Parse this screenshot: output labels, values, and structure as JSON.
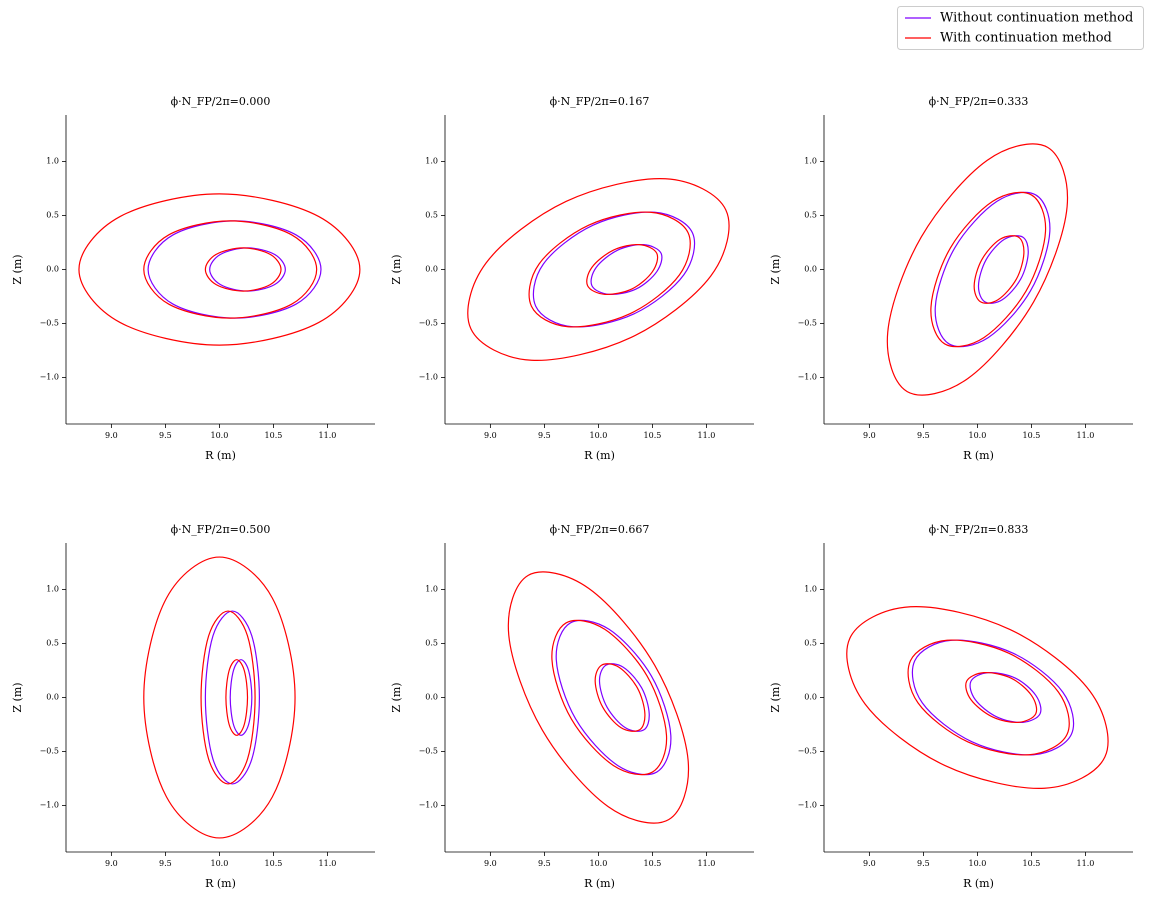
{
  "chart_data": [
    {
      "type": "line",
      "title": "ϕ·N_FP/2π=0.000",
      "xlabel": "R (m)",
      "ylabel": "Z (m)",
      "xlim": [
        8.58,
        11.44
      ],
      "ylim": [
        -1.43,
        1.43
      ],
      "xticks": [
        {
          "value": 9,
          "label": "9.0"
        },
        {
          "value": 9.5,
          "label": "9.5"
        },
        {
          "value": 10,
          "label": "10.0"
        },
        {
          "value": 10.5,
          "label": "10.5"
        },
        {
          "value": 11,
          "label": "11.0"
        }
      ],
      "yticks": [
        {
          "value": -1,
          "label": "−1.0"
        },
        {
          "value": -0.5,
          "label": "−0.5"
        },
        {
          "value": 0,
          "label": "0.0"
        },
        {
          "value": 0.5,
          "label": "0.5"
        },
        {
          "value": 1,
          "label": "1.0"
        }
      ],
      "series": [
        {
          "name": "Without continuation method",
          "color": "#7f00ff",
          "x": [
            10.94,
            10.71,
            10.14,
            9.57,
            9.34,
            9.57,
            10.14,
            10.71,
            10.94,
            null,
            10.61,
            10.51,
            10.26,
            10.01,
            9.91,
            10.01,
            10.26,
            10.51,
            10.61
          ],
          "y": [
            0,
            0.32,
            0.45,
            0.32,
            0,
            -0.32,
            -0.45,
            -0.32,
            0,
            null,
            0,
            0.14,
            0.2,
            0.14,
            0,
            -0.14,
            -0.2,
            -0.14,
            0
          ]
        },
        {
          "name": "With continuation method",
          "color": "#ff0000",
          "x": [
            11.3,
            10.92,
            10.0,
            9.08,
            8.7,
            9.08,
            10.0,
            10.92,
            11.3,
            null,
            10.9,
            10.67,
            10.1,
            9.53,
            9.3,
            9.53,
            10.1,
            10.67,
            10.9,
            null,
            10.57,
            10.47,
            10.22,
            9.97,
            9.87,
            9.97,
            10.22,
            10.47,
            10.57
          ],
          "y": [
            0,
            0.49,
            0.7,
            0.49,
            0,
            -0.49,
            -0.7,
            -0.49,
            0,
            null,
            0,
            0.32,
            0.45,
            0.32,
            0,
            -0.32,
            -0.45,
            -0.32,
            0,
            null,
            0,
            0.14,
            0.2,
            0.14,
            0,
            -0.14,
            -0.2,
            -0.14,
            0
          ]
        }
      ]
    },
    {
      "type": "line",
      "title": "ϕ·N_FP/2π=0.167",
      "xlabel": "R (m)",
      "ylabel": "Z (m)",
      "xlim": [
        8.58,
        11.44
      ],
      "ylim": [
        -1.43,
        1.43
      ],
      "xticks": [
        {
          "value": 9,
          "label": "9.0"
        },
        {
          "value": 9.5,
          "label": "9.5"
        },
        {
          "value": 10,
          "label": "10.0"
        },
        {
          "value": 10.5,
          "label": "10.5"
        },
        {
          "value": 11,
          "label": "11.0"
        }
      ],
      "yticks": [
        {
          "value": -1,
          "label": "−1.0"
        },
        {
          "value": -0.5,
          "label": "−0.5"
        },
        {
          "value": 0,
          "label": "0.0"
        },
        {
          "value": 0.5,
          "label": "0.5"
        },
        {
          "value": 1,
          "label": "1.0"
        }
      ],
      "series": [
        {
          "name": "Without continuation method",
          "color": "#7f00ff",
          "x": [
            10.87,
            10.52,
            9.95,
            9.49,
            9.42,
            9.76,
            10.33,
            10.79,
            10.87,
            null,
            10.58,
            10.42,
            10.18,
            9.98,
            9.94,
            10.1,
            10.35,
            10.54,
            10.58
          ],
          "y": [
            0.34,
            0.53,
            0.41,
            0.05,
            -0.34,
            -0.53,
            -0.41,
            -0.05,
            0.34,
            null,
            0.15,
            0.23,
            0.18,
            0.02,
            -0.15,
            -0.23,
            -0.18,
            -0.02,
            0.15
          ]
        },
        {
          "name": "With continuation method",
          "color": "#ff0000",
          "x": [
            11.18,
            10.62,
            9.7,
            8.96,
            8.82,
            9.38,
            10.3,
            11.04,
            11.18,
            null,
            10.83,
            10.48,
            9.91,
            9.45,
            9.38,
            9.72,
            10.29,
            10.75,
            10.83,
            null,
            10.54,
            10.38,
            10.14,
            9.94,
            9.9,
            10.06,
            10.31,
            10.5,
            10.54
          ],
          "y": [
            0.55,
            0.84,
            0.63,
            0.06,
            -0.55,
            -0.84,
            -0.63,
            -0.06,
            0.55,
            null,
            0.34,
            0.53,
            0.41,
            0.05,
            -0.34,
            -0.53,
            -0.41,
            -0.05,
            0.34,
            null,
            0.15,
            0.23,
            0.18,
            0.02,
            -0.15,
            -0.23,
            -0.18,
            -0.02,
            0.15
          ]
        }
      ]
    },
    {
      "type": "line",
      "title": "ϕ·N_FP/2π=0.333",
      "xlabel": "R (m)",
      "ylabel": "Z (m)",
      "xlim": [
        8.58,
        11.44
      ],
      "ylim": [
        -1.43,
        1.43
      ],
      "xticks": [
        {
          "value": 9,
          "label": "9.0"
        },
        {
          "value": 9.5,
          "label": "9.5"
        },
        {
          "value": 10,
          "label": "10.0"
        },
        {
          "value": 10.5,
          "label": "10.5"
        },
        {
          "value": 11,
          "label": "11.0"
        }
      ],
      "yticks": [
        {
          "value": -1,
          "label": "−1.0"
        },
        {
          "value": -0.5,
          "label": "−0.5"
        },
        {
          "value": 0,
          "label": "0.0"
        },
        {
          "value": 0.5,
          "label": "0.5"
        },
        {
          "value": 1,
          "label": "1.0"
        }
      ],
      "series": [
        {
          "name": "Without continuation method",
          "color": "#7f00ff",
          "x": [
            10.54,
            10.18,
            9.79,
            9.61,
            9.74,
            10.1,
            10.49,
            10.67,
            10.54,
            null,
            10.42,
            10.25,
            10.08,
            10.01,
            10.07,
            10.23,
            10.4,
            10.47,
            10.42
          ],
          "y": [
            0.69,
            0.63,
            0.2,
            -0.35,
            -0.69,
            -0.63,
            -0.2,
            0.35,
            0.69,
            null,
            0.3,
            0.28,
            0.09,
            -0.15,
            -0.3,
            -0.28,
            -0.09,
            0.15,
            0.3
          ]
        },
        {
          "name": "With continuation method",
          "color": "#ff0000",
          "x": [
            10.65,
            10.09,
            9.48,
            9.17,
            9.35,
            9.91,
            10.52,
            10.83,
            10.65,
            null,
            10.5,
            10.14,
            9.75,
            9.57,
            9.7,
            10.06,
            10.45,
            10.63,
            10.5,
            null,
            10.38,
            10.21,
            10.04,
            9.97,
            10.03,
            10.19,
            10.36,
            10.43,
            10.38
          ],
          "y": [
            1.13,
            1.01,
            0.3,
            -0.58,
            -1.13,
            -1.01,
            -0.3,
            0.58,
            1.13,
            null,
            0.69,
            0.63,
            0.2,
            -0.35,
            -0.69,
            -0.63,
            -0.2,
            0.35,
            0.69,
            null,
            0.3,
            0.28,
            0.09,
            -0.15,
            -0.3,
            -0.28,
            -0.09,
            0.15,
            0.3
          ]
        }
      ]
    },
    {
      "type": "line",
      "title": "ϕ·N_FP/2π=0.500",
      "xlabel": "R (m)",
      "ylabel": "Z (m)",
      "xlim": [
        8.58,
        11.44
      ],
      "ylim": [
        -1.43,
        1.43
      ],
      "xticks": [
        {
          "value": 9,
          "label": "9.0"
        },
        {
          "value": 9.5,
          "label": "9.5"
        },
        {
          "value": 10,
          "label": "10.0"
        },
        {
          "value": 10.5,
          "label": "10.5"
        },
        {
          "value": 11,
          "label": "11.0"
        }
      ],
      "yticks": [
        {
          "value": -1,
          "label": "−1.0"
        },
        {
          "value": -0.5,
          "label": "−0.5"
        },
        {
          "value": 0,
          "label": "0.0"
        },
        {
          "value": 0.5,
          "label": "0.5"
        },
        {
          "value": 1,
          "label": "1.0"
        }
      ],
      "series": [
        {
          "name": "Without continuation method",
          "color": "#7f00ff",
          "x": [
            10.37,
            10.3,
            10.12,
            9.94,
            9.87,
            9.94,
            10.12,
            10.3,
            10.37,
            null,
            10.3,
            10.27,
            10.2,
            10.13,
            10.1,
            10.13,
            10.2,
            10.27,
            10.3
          ],
          "y": [
            0,
            0.57,
            0.8,
            0.57,
            0,
            -0.57,
            -0.8,
            -0.57,
            0,
            null,
            0,
            0.25,
            0.35,
            0.25,
            0,
            -0.25,
            -0.35,
            -0.25,
            0
          ]
        },
        {
          "name": "With continuation method",
          "color": "#ff0000",
          "x": [
            10.7,
            10.49,
            10.0,
            9.51,
            9.3,
            9.51,
            10.0,
            10.49,
            10.7,
            null,
            10.33,
            10.26,
            10.08,
            9.9,
            9.83,
            9.9,
            10.08,
            10.26,
            10.33,
            null,
            10.26,
            10.23,
            10.16,
            10.09,
            10.06,
            10.09,
            10.16,
            10.23,
            10.26
          ],
          "y": [
            0,
            0.92,
            1.3,
            0.92,
            0,
            -0.92,
            -1.3,
            -0.92,
            0,
            null,
            0,
            0.57,
            0.8,
            0.57,
            0,
            -0.57,
            -0.8,
            -0.57,
            0,
            null,
            0,
            0.25,
            0.35,
            0.25,
            0,
            -0.25,
            -0.35,
            -0.25,
            0
          ]
        }
      ]
    },
    {
      "type": "line",
      "title": "ϕ·N_FP/2π=0.667",
      "xlabel": "R (m)",
      "ylabel": "Z (m)",
      "xlim": [
        8.58,
        11.44
      ],
      "ylim": [
        -1.43,
        1.43
      ],
      "xticks": [
        {
          "value": 9,
          "label": "9.0"
        },
        {
          "value": 9.5,
          "label": "9.5"
        },
        {
          "value": 10,
          "label": "10.0"
        },
        {
          "value": 10.5,
          "label": "10.5"
        },
        {
          "value": 11,
          "label": "11.0"
        }
      ],
      "yticks": [
        {
          "value": -1,
          "label": "−1.0"
        },
        {
          "value": -0.5,
          "label": "−0.5"
        },
        {
          "value": 0,
          "label": "0.0"
        },
        {
          "value": 0.5,
          "label": "0.5"
        },
        {
          "value": 1,
          "label": "1.0"
        }
      ],
      "series": [
        {
          "name": "Without continuation method",
          "color": "#7f00ff",
          "x": [
            10.54,
            10.18,
            9.79,
            9.61,
            9.74,
            10.1,
            10.49,
            10.67,
            10.54,
            null,
            10.42,
            10.25,
            10.08,
            10.01,
            10.07,
            10.23,
            10.4,
            10.47,
            10.42
          ],
          "y": [
            -0.69,
            -0.63,
            -0.2,
            0.35,
            0.69,
            0.63,
            0.2,
            -0.35,
            -0.69,
            null,
            -0.3,
            -0.28,
            -0.09,
            0.15,
            0.3,
            0.28,
            0.09,
            -0.15,
            -0.3
          ]
        },
        {
          "name": "With continuation method",
          "color": "#ff0000",
          "x": [
            10.65,
            10.09,
            9.48,
            9.17,
            9.35,
            9.91,
            10.52,
            10.83,
            10.65,
            null,
            10.5,
            10.14,
            9.75,
            9.57,
            9.7,
            10.06,
            10.45,
            10.63,
            10.5,
            null,
            10.38,
            10.21,
            10.04,
            9.97,
            10.03,
            10.19,
            10.36,
            10.43,
            10.38
          ],
          "y": [
            -1.13,
            -1.01,
            -0.3,
            0.58,
            1.13,
            1.01,
            0.3,
            -0.58,
            -1.13,
            null,
            -0.69,
            -0.63,
            -0.2,
            0.35,
            0.69,
            0.63,
            0.2,
            -0.35,
            -0.69,
            null,
            -0.3,
            -0.28,
            -0.09,
            0.15,
            0.3,
            0.28,
            0.09,
            -0.15,
            -0.3
          ]
        }
      ]
    },
    {
      "type": "line",
      "title": "ϕ·N_FP/2π=0.833",
      "xlabel": "R (m)",
      "ylabel": "Z (m)",
      "xlim": [
        8.58,
        11.44
      ],
      "ylim": [
        -1.43,
        1.43
      ],
      "xticks": [
        {
          "value": 9,
          "label": "9.0"
        },
        {
          "value": 9.5,
          "label": "9.5"
        },
        {
          "value": 10,
          "label": "10.0"
        },
        {
          "value": 10.5,
          "label": "10.5"
        },
        {
          "value": 11,
          "label": "11.0"
        }
      ],
      "yticks": [
        {
          "value": -1,
          "label": "−1.0"
        },
        {
          "value": -0.5,
          "label": "−0.5"
        },
        {
          "value": 0,
          "label": "0.0"
        },
        {
          "value": 0.5,
          "label": "0.5"
        },
        {
          "value": 1,
          "label": "1.0"
        }
      ],
      "series": [
        {
          "name": "Without continuation method",
          "color": "#7f00ff",
          "x": [
            10.87,
            10.52,
            9.95,
            9.49,
            9.42,
            9.76,
            10.33,
            10.79,
            10.87,
            null,
            10.58,
            10.42,
            10.18,
            9.98,
            9.94,
            10.1,
            10.35,
            10.54,
            10.58
          ],
          "y": [
            -0.34,
            -0.53,
            -0.41,
            -0.05,
            0.34,
            0.53,
            0.41,
            0.05,
            -0.34,
            null,
            -0.15,
            -0.23,
            -0.18,
            -0.02,
            0.15,
            0.23,
            0.18,
            0.02,
            -0.15
          ]
        },
        {
          "name": "With continuation method",
          "color": "#ff0000",
          "x": [
            11.18,
            10.62,
            9.7,
            8.96,
            8.82,
            9.38,
            10.3,
            11.04,
            11.18,
            null,
            10.83,
            10.48,
            9.91,
            9.45,
            9.38,
            9.72,
            10.29,
            10.75,
            10.83,
            null,
            10.54,
            10.38,
            10.14,
            9.94,
            9.9,
            10.06,
            10.31,
            10.5,
            10.54
          ],
          "y": [
            -0.55,
            -0.84,
            -0.63,
            -0.06,
            0.55,
            0.84,
            0.63,
            0.06,
            -0.55,
            null,
            -0.34,
            -0.53,
            -0.41,
            -0.05,
            0.34,
            0.53,
            0.41,
            0.05,
            -0.34,
            null,
            -0.15,
            -0.23,
            -0.18,
            -0.02,
            0.15,
            0.23,
            0.18,
            0.02,
            -0.15
          ]
        }
      ]
    }
  ]
}
